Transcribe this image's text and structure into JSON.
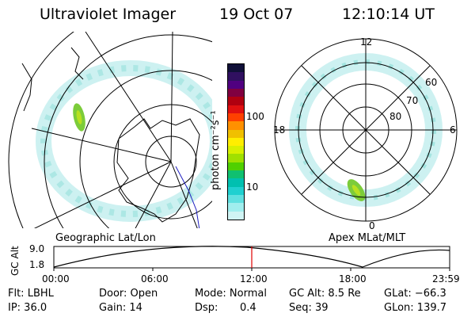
{
  "header": {
    "instrument": "Ultraviolet Imager",
    "date": "19 Oct 07",
    "time": "12:10:14 UT"
  },
  "geo_panel": {
    "caption": "Geographic Lat/Lon"
  },
  "colorbar": {
    "unit_label": "photon cm⁻²s⁻¹",
    "ticks": [
      "100",
      "10"
    ],
    "colors": [
      "#101038",
      "#301060",
      "#500080",
      "#800040",
      "#b00010",
      "#e01010",
      "#ff4000",
      "#ff9000",
      "#f0c000",
      "#ffee00",
      "#d8f000",
      "#a0e000",
      "#50d000",
      "#10c070",
      "#00c0b0",
      "#20d0d0",
      "#60e0e0",
      "#a0eeee",
      "#d0f4f4"
    ]
  },
  "polar_panel": {
    "caption": "Apex MLat/MLT",
    "mlt_labels": {
      "top": "12",
      "left": "18",
      "right": "6",
      "bottom": "0"
    },
    "mlat_labels": [
      "60",
      "70",
      "80"
    ]
  },
  "altitude_track": {
    "ylabel": "GC Alt",
    "ytick_top": "9.0",
    "ytick_bottom": "1.8",
    "xticks": [
      "00:00",
      "06:00",
      "12:00",
      "18:00",
      "23:59"
    ],
    "marker_color": "#e00000"
  },
  "status": {
    "row1": {
      "flt": "Flt: LBHL",
      "door": "Door: Open",
      "mode": "Mode: Normal",
      "gcalt": "GC Alt: 8.5 Re",
      "glat": "GLat: −66.3"
    },
    "row2": {
      "ip": "IP: 36.0",
      "gain": "Gain: 14",
      "dsp_label": "Dsp:",
      "dsp_value": "0.4",
      "seq": "Seq: 39",
      "glon": "GLon: 139.7"
    }
  }
}
